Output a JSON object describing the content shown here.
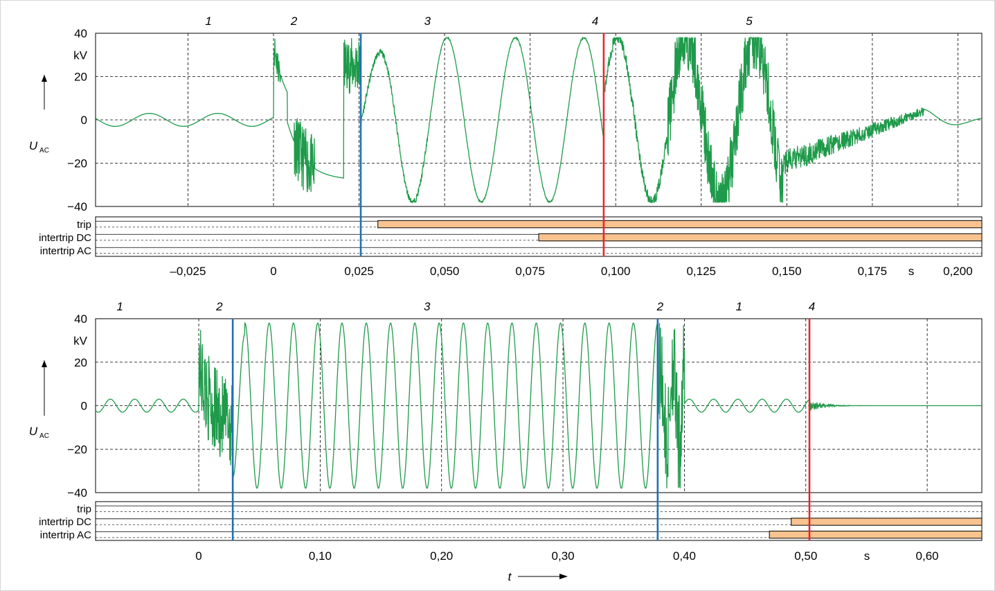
{
  "colors": {
    "signal": "#1e9a4a",
    "blue_marker": "#1f6fb5",
    "red_marker": "#e8262d",
    "bar_fill": "#f9c38f",
    "grid": "#000000"
  },
  "chart_data": [
    {
      "type": "line",
      "ylabel_main": "U",
      "ylabel_sub": "AC",
      "yunit": "kV",
      "xunit": "s",
      "xlim": [
        -0.052,
        0.207
      ],
      "ylim": [
        -40,
        40
      ],
      "y_ticks": [
        "40",
        "20",
        "0",
        "−20",
        "−40"
      ],
      "x_ticks": [
        "–0,025",
        "0",
        "0,025",
        "0,050",
        "0,075",
        "0,100",
        "0,125",
        "0,150",
        "0,175",
        "0,200"
      ],
      "x_tick_values": [
        -0.025,
        0,
        0.025,
        0.05,
        0.075,
        0.1,
        0.125,
        0.15,
        0.175,
        0.2
      ],
      "grid": true,
      "phase_labels": [
        {
          "text": "1",
          "x": -0.019
        },
        {
          "text": "2",
          "x": 0.006
        },
        {
          "text": "3",
          "x": 0.045
        },
        {
          "text": "4",
          "x": 0.094
        },
        {
          "text": "5",
          "x": 0.139
        }
      ],
      "markers": [
        {
          "color": "blue",
          "x": 0.0255
        },
        {
          "color": "red",
          "x": 0.0965
        }
      ],
      "signals": [
        "trip",
        "intertrip DC",
        "intertrip AC"
      ],
      "signal_bars": [
        {
          "signal": "trip",
          "start": 0.0305,
          "end": 0.207
        },
        {
          "signal": "intertrip DC",
          "start": 0.0775,
          "end": 0.207
        }
      ],
      "series": [
        {
          "values_description": "AC phase voltage in kV"
        }
      ]
    },
    {
      "type": "line",
      "ylabel_main": "U",
      "ylabel_sub": "AC",
      "yunit": "kV",
      "xunit": "s",
      "xlabel": "t",
      "xlim": [
        -0.085,
        0.645
      ],
      "ylim": [
        -40,
        40
      ],
      "y_ticks": [
        "40",
        "20",
        "0",
        "−20",
        "−40"
      ],
      "x_ticks": [
        "0",
        "0,10",
        "0,20",
        "0,30",
        "0,40",
        "0,50",
        "0,60"
      ],
      "x_tick_values": [
        0,
        0.1,
        0.2,
        0.3,
        0.4,
        0.5,
        0.6
      ],
      "grid": true,
      "phase_labels": [
        {
          "text": "1",
          "x": -0.065
        },
        {
          "text": "2",
          "x": 0.017
        },
        {
          "text": "3",
          "x": 0.188
        },
        {
          "text": "2",
          "x": 0.38
        },
        {
          "text": "1",
          "x": 0.445
        },
        {
          "text": "4",
          "x": 0.505
        }
      ],
      "markers": [
        {
          "color": "blue",
          "x": 0.028
        },
        {
          "color": "blue",
          "x": 0.378
        },
        {
          "color": "red",
          "x": 0.503
        }
      ],
      "signals": [
        "trip",
        "intertrip DC",
        "intertrip AC"
      ],
      "signal_bars": [
        {
          "signal": "intertrip DC",
          "start": 0.488,
          "end": 0.645
        },
        {
          "signal": "intertrip AC",
          "start": 0.47,
          "end": 0.645
        }
      ],
      "series": [
        {
          "values_description": "AC phase voltage in kV"
        }
      ]
    }
  ]
}
